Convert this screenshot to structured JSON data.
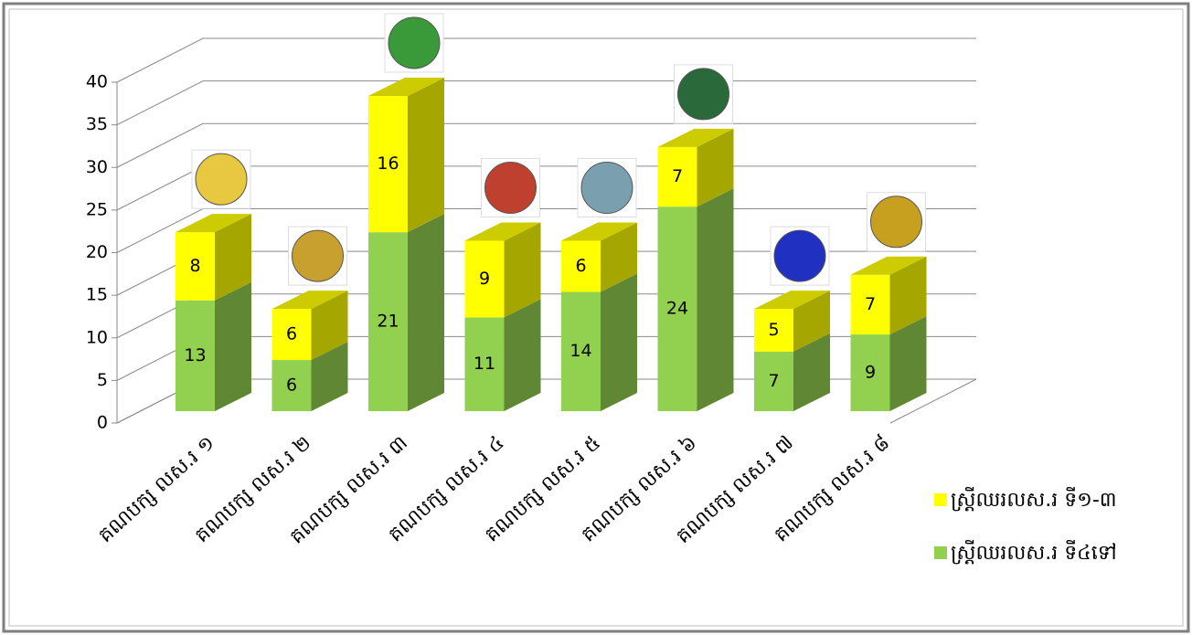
{
  "chart_data": {
    "type": "bar3d_stacked",
    "categories": [
      "គណបក្ស លស.រ ១",
      "គណបក្ស លស.រ ២",
      "គណបក្ស លស.រ ៣",
      "គណបក្ស លស.រ ៤",
      "គណបក្ស លស.រ ៥",
      "គណបក្ស លស.រ ៦",
      "គណបក្ស លស.រ ៧",
      "គណបក្ស លស.រ ៨"
    ],
    "series": [
      {
        "name": "ស្ត្រីឈរលស.រ ទី៤ទៅ",
        "color": "#92d050",
        "values": [
          13,
          6,
          21,
          11,
          14,
          24,
          7,
          9
        ]
      },
      {
        "name": "ស្ត្រីឈរលស.រ ទី១-៣",
        "color": "#ffff00",
        "values": [
          8,
          6,
          16,
          9,
          6,
          7,
          5,
          7
        ]
      }
    ],
    "ylim": [
      0,
      40
    ],
    "yticks": [
      0,
      5,
      10,
      15,
      20,
      25,
      30,
      35,
      40
    ],
    "grid": true,
    "legend": "right"
  }
}
